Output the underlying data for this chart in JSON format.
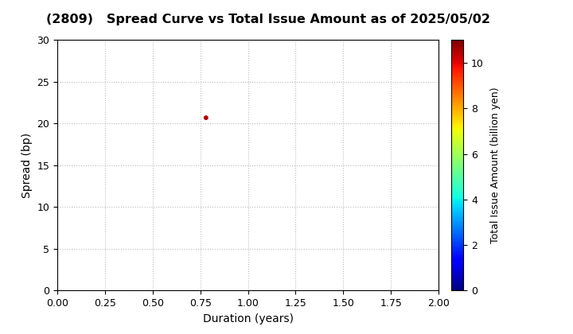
{
  "title": "(2809)   Spread Curve vs Total Issue Amount as of 2025/05/02",
  "xlabel": "Duration (years)",
  "ylabel": "Spread (bp)",
  "colorbar_label": "Total Issue Amount (billion yen)",
  "xlim": [
    0.0,
    2.0
  ],
  "ylim": [
    0,
    30
  ],
  "xticks": [
    0.0,
    0.25,
    0.5,
    0.75,
    1.0,
    1.25,
    1.5,
    1.75,
    2.0
  ],
  "yticks": [
    0,
    5,
    10,
    15,
    20,
    25,
    30
  ],
  "colorbar_ticks": [
    0,
    2,
    4,
    6,
    8,
    10
  ],
  "colorbar_lim": [
    0,
    11
  ],
  "scatter_x": [
    0.78
  ],
  "scatter_y": [
    20.7
  ],
  "scatter_color": [
    10.5
  ],
  "scatter_size": 18,
  "grid_color": "#bbbbbb",
  "background_color": "#ffffff",
  "colormap": "jet",
  "title_fontsize": 11.5,
  "label_fontsize": 10,
  "tick_fontsize": 9,
  "colorbar_tick_fontsize": 9,
  "colorbar_label_fontsize": 9
}
